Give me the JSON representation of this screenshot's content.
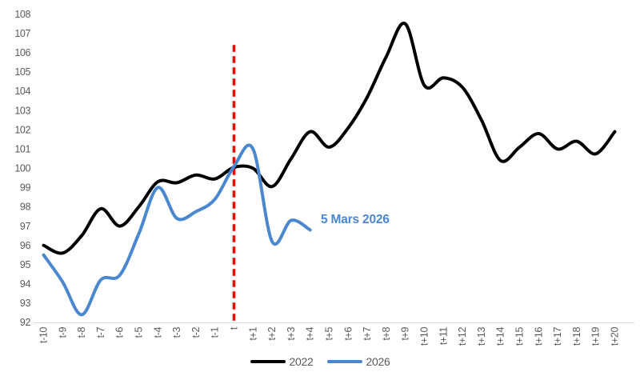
{
  "chart_data": {
    "type": "line",
    "title": "",
    "xlabel": "",
    "ylabel": "",
    "categories": [
      "t-10",
      "t-9",
      "t-8",
      "t-7",
      "t-6",
      "t-5",
      "t-4",
      "t-3",
      "t-2",
      "t-1",
      "t",
      "t+1",
      "t+2",
      "t+3",
      "t+4",
      "t+5",
      "t+6",
      "t+7",
      "t+8",
      "t+9",
      "t+10",
      "t+11",
      "t+12",
      "t+13",
      "t+14",
      "t+15",
      "t+16",
      "t+17",
      "t+18",
      "t+19",
      "t+20"
    ],
    "series": [
      {
        "name": "2022",
        "color": "#000000",
        "values": [
          96.0,
          95.6,
          96.5,
          97.9,
          97.0,
          98.0,
          99.3,
          99.25,
          99.65,
          99.45,
          100.05,
          100.0,
          99.05,
          100.5,
          101.9,
          101.1,
          102.1,
          103.7,
          105.8,
          107.5,
          104.3,
          104.7,
          104.2,
          102.5,
          100.4,
          101.1,
          101.8,
          101.0,
          101.4,
          100.75,
          101.9
        ]
      },
      {
        "name": "2026",
        "color": "#4a87cf",
        "values": [
          95.5,
          94.1,
          92.4,
          94.2,
          94.45,
          96.6,
          99.0,
          97.4,
          97.75,
          98.4,
          100.1,
          101.0,
          96.2,
          97.3,
          96.8
        ]
      }
    ],
    "ylim": [
      92,
      108
    ],
    "y_ticks": [
      92,
      93,
      94,
      95,
      96,
      97,
      98,
      99,
      100,
      101,
      102,
      103,
      104,
      105,
      106,
      107,
      108
    ],
    "grid": false,
    "legend_position": "bottom",
    "event_line": {
      "at_category": "t",
      "color": "#fe0000",
      "style": "dashed",
      "from_value": 92,
      "to_value": 106.4
    },
    "annotation": {
      "label": "5 Mars 2026",
      "color": "#4a87cf"
    },
    "axis_line_color": "#d9d9d9",
    "tick_color": "#595959"
  },
  "legend": {
    "items": [
      {
        "label": "2022",
        "color": "#000000"
      },
      {
        "label": "2026",
        "color": "#4a87cf"
      }
    ]
  }
}
